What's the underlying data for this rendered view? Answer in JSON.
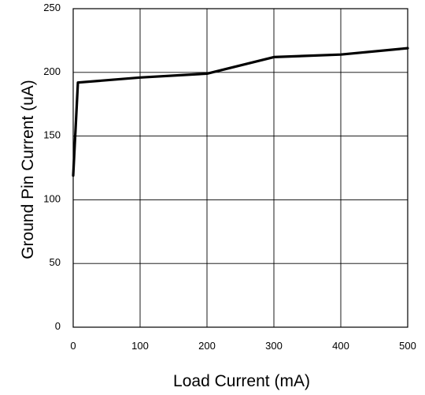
{
  "chart_data": {
    "type": "line",
    "xlabel": "Load Current (mA)",
    "ylabel": "Ground Pin Current  (uA)",
    "xlim": [
      0,
      500
    ],
    "ylim": [
      0,
      250
    ],
    "x_ticks": [
      0,
      100,
      200,
      300,
      400,
      500
    ],
    "y_ticks": [
      0,
      50,
      100,
      150,
      200,
      250
    ],
    "grid": true,
    "series": [
      {
        "x": [
          0,
          7,
          100,
          200,
          300,
          400,
          500
        ],
        "y": [
          119,
          192,
          196,
          199,
          212,
          214,
          219
        ],
        "color": "#000000"
      }
    ]
  }
}
